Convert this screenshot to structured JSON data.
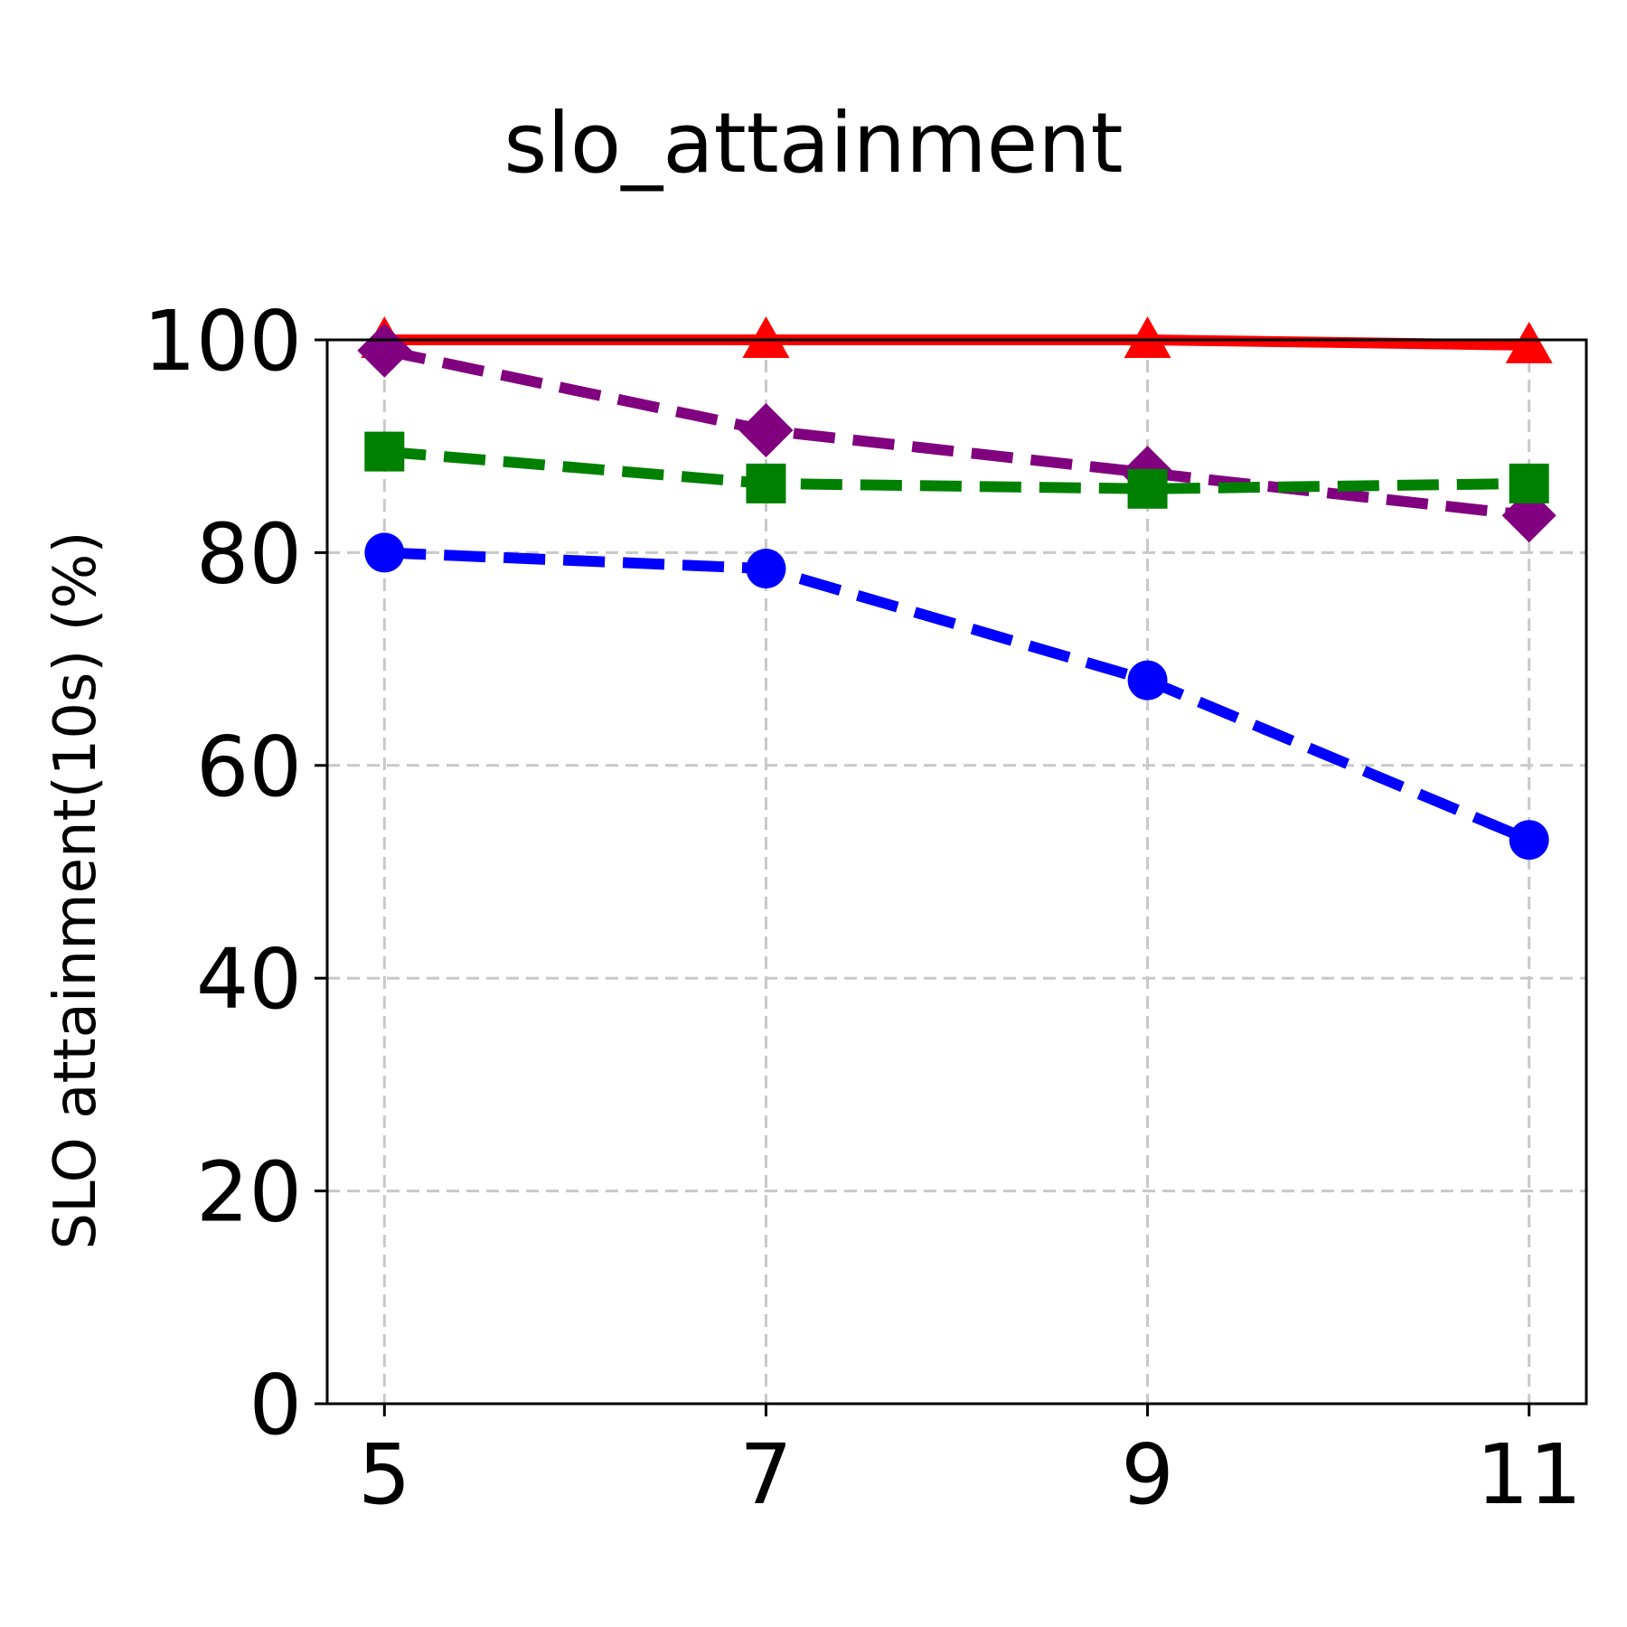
{
  "chart_data": {
    "type": "line",
    "title": "slo_attainment",
    "xlabel": "",
    "ylabel": "SLO attainment(10s) (%)",
    "x": [
      5,
      7,
      9,
      11
    ],
    "xticks": [
      "5",
      "7",
      "9",
      "11"
    ],
    "ylim": [
      0,
      100
    ],
    "yticks": [
      "0",
      "20",
      "40",
      "60",
      "80",
      "100"
    ],
    "grid": true,
    "series": [
      {
        "color": "#ff0000",
        "marker": "triangle",
        "dash": "solid",
        "values": [
          100,
          100,
          100,
          99.5
        ]
      },
      {
        "color": "#800080",
        "marker": "diamond",
        "dash": "dashed",
        "values": [
          99,
          91.5,
          87.5,
          83.5
        ]
      },
      {
        "color": "#008000",
        "marker": "square",
        "dash": "dashed",
        "values": [
          89.5,
          86.5,
          86,
          86.5
        ]
      },
      {
        "color": "#0000ff",
        "marker": "circle",
        "dash": "dashed",
        "values": [
          80,
          78.5,
          68,
          53
        ]
      }
    ]
  }
}
